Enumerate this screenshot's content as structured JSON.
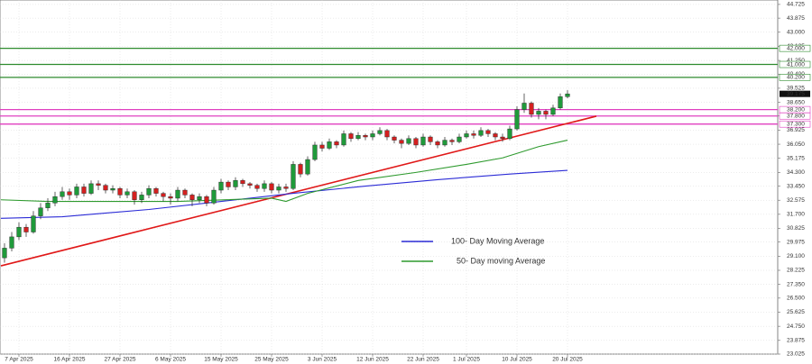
{
  "chart_data": {
    "type": "candlestick",
    "open": [
      29.0,
      29.6,
      30.3,
      30.9,
      30.6,
      31.6,
      32.1,
      32.4,
      32.8,
      33.1,
      32.9,
      33.4,
      33.0,
      33.6,
      33.5,
      33.2,
      33.3,
      32.9,
      33.1,
      32.6,
      32.9,
      33.3,
      33.0,
      32.8,
      32.7,
      33.2,
      32.9,
      32.6,
      32.8,
      32.4,
      33.2,
      33.7,
      33.4,
      33.8,
      33.6,
      33.5,
      33.3,
      33.6,
      33.2,
      33.4,
      33.3,
      34.8,
      34.2,
      35.1,
      36.0,
      35.8,
      36.2,
      36.0,
      36.7,
      36.4,
      36.6,
      36.5,
      36.7,
      36.9,
      36.5,
      36.3,
      36.1,
      36.4,
      36.0,
      36.5,
      36.2,
      36.0,
      36.3,
      36.2,
      36.5,
      36.7,
      36.6,
      36.9,
      36.7,
      36.5,
      36.4,
      37.0,
      38.2,
      38.6,
      37.9,
      38.1,
      37.9,
      38.3,
      39.0
    ],
    "high": [
      29.9,
      30.6,
      31.2,
      31.1,
      31.9,
      32.4,
      32.7,
      33.1,
      33.4,
      33.3,
      33.6,
      33.6,
      33.8,
      33.8,
      33.6,
      33.5,
      33.4,
      33.3,
      33.2,
      33.1,
      33.5,
      33.4,
      33.1,
      33.0,
      33.4,
      33.3,
      33.0,
      33.0,
      32.9,
      33.4,
      33.9,
      33.8,
      34.0,
      33.9,
      33.7,
      33.6,
      33.8,
      33.7,
      33.6,
      33.6,
      35.0,
      34.9,
      35.3,
      36.2,
      36.2,
      36.4,
      36.3,
      36.9,
      36.8,
      36.8,
      36.7,
      36.9,
      37.1,
      37.0,
      36.6,
      36.4,
      36.6,
      36.5,
      36.7,
      36.6,
      36.3,
      36.5,
      36.4,
      36.7,
      36.9,
      36.9,
      37.1,
      37.0,
      36.8,
      36.7,
      37.2,
      38.4,
      39.2,
      38.7,
      38.3,
      38.2,
      38.5,
      39.2,
      39.4
    ],
    "low": [
      28.7,
      29.4,
      30.1,
      30.3,
      30.5,
      31.4,
      31.9,
      32.2,
      32.6,
      32.6,
      32.7,
      32.8,
      32.9,
      33.2,
      33.0,
      33.0,
      32.7,
      32.7,
      32.3,
      32.4,
      32.7,
      32.8,
      32.5,
      32.3,
      32.5,
      32.7,
      32.2,
      32.4,
      32.2,
      32.3,
      33.0,
      33.2,
      33.2,
      33.4,
      33.3,
      33.1,
      33.1,
      33.0,
      33.0,
      33.1,
      33.2,
      34.0,
      34.1,
      35.0,
      35.6,
      35.7,
      35.8,
      35.9,
      36.2,
      36.3,
      36.3,
      36.3,
      36.6,
      36.3,
      36.1,
      35.8,
      36.0,
      35.8,
      35.9,
      36.0,
      35.8,
      35.9,
      36.0,
      36.1,
      36.4,
      36.4,
      36.5,
      36.5,
      36.3,
      36.2,
      36.3,
      36.9,
      38.0,
      37.7,
      37.6,
      37.6,
      37.8,
      38.2,
      38.9
    ],
    "close": [
      29.6,
      30.3,
      30.9,
      30.6,
      31.6,
      32.1,
      32.4,
      32.8,
      33.1,
      32.9,
      33.4,
      33.0,
      33.6,
      33.5,
      33.2,
      33.3,
      32.9,
      33.1,
      32.6,
      32.9,
      33.3,
      33.0,
      32.8,
      32.7,
      33.2,
      32.9,
      32.6,
      32.8,
      32.4,
      33.2,
      33.7,
      33.4,
      33.8,
      33.6,
      33.5,
      33.3,
      33.6,
      33.2,
      33.4,
      33.3,
      34.8,
      34.2,
      35.1,
      36.0,
      35.8,
      36.2,
      36.0,
      36.7,
      36.4,
      36.6,
      36.5,
      36.7,
      36.9,
      36.5,
      36.3,
      36.1,
      36.4,
      36.0,
      36.5,
      36.2,
      36.0,
      36.3,
      36.2,
      36.5,
      36.7,
      36.6,
      36.9,
      36.7,
      36.5,
      36.4,
      37.0,
      38.2,
      38.6,
      37.9,
      38.1,
      37.9,
      38.3,
      39.0,
      39.175
    ],
    "up_color": "#1f9a3a",
    "down_color": "#d42020",
    "series": [
      {
        "name": "100- Day Moving Average",
        "color": "#2b2bd6",
        "x": [
          -0.5,
          8,
          20,
          30,
          40,
          50,
          60,
          70,
          78
        ],
        "values": [
          31.45,
          31.55,
          32.0,
          32.5,
          33.0,
          33.45,
          33.85,
          34.2,
          34.43
        ]
      },
      {
        "name": "50- Day moving Average",
        "color": "#2e9a2e",
        "x": [
          -0.5,
          6,
          24,
          37,
          39,
          42,
          49,
          57,
          64,
          69,
          74,
          78
        ],
        "values": [
          32.6,
          32.5,
          32.5,
          32.7,
          32.5,
          33.0,
          33.8,
          34.3,
          34.8,
          35.2,
          35.9,
          36.3
        ]
      }
    ],
    "trendline": {
      "color": "#e01818",
      "x": [
        -0.5,
        82
      ],
      "values": [
        28.5,
        37.79
      ]
    },
    "levels": [
      {
        "value": 42.0,
        "label": "42.000",
        "color": "#2e8b2e"
      },
      {
        "value": 41.0,
        "label": "41.000",
        "color": "#2e8b2e"
      },
      {
        "value": 40.2,
        "label": "40.200",
        "color": "#2e8b2e"
      },
      {
        "value": 38.2,
        "label": "38.200",
        "color": "#e040c0"
      },
      {
        "value": 37.8,
        "label": "37.800",
        "color": "#e040c0"
      },
      {
        "value": 37.3,
        "label": "37.300",
        "color": "#e040c0"
      }
    ],
    "last_price": {
      "value": 39.175,
      "label": "39.175"
    },
    "xlim": [
      -0.625,
      107.125
    ],
    "ylim": [
      23.025,
      45.0
    ],
    "grid": true,
    "xticks": [
      {
        "value": 2,
        "label": "7 Apr 2025"
      },
      {
        "value": 9,
        "label": "16 Apr 2025"
      },
      {
        "value": 16,
        "label": "27 Apr 2025"
      },
      {
        "value": 23,
        "label": "6 May 2025"
      },
      {
        "value": 30,
        "label": "15 May 2025"
      },
      {
        "value": 37,
        "label": "25 May 2025"
      },
      {
        "value": 44,
        "label": "3 Jun 2025"
      },
      {
        "value": 51,
        "label": "12 Jun 2025"
      },
      {
        "value": 58,
        "label": "22 Jun 2025"
      },
      {
        "value": 64,
        "label": "1 Jul 2025"
      },
      {
        "value": 71,
        "label": "10 Jul 2025"
      },
      {
        "value": 78,
        "label": "20 Jul 2025"
      }
    ],
    "yticks": [
      {
        "value": 44.725,
        "label": "44.725"
      },
      {
        "value": 43.875,
        "label": "43.875"
      },
      {
        "value": 43.0,
        "label": "43.000"
      },
      {
        "value": 42.125,
        "label": "42.125"
      },
      {
        "value": 41.25,
        "label": "41.250"
      },
      {
        "value": 40.4,
        "label": "40.400"
      },
      {
        "value": 39.525,
        "label": "39.525"
      },
      {
        "value": 38.65,
        "label": "38.650"
      },
      {
        "value": 37.8,
        "label": "37.800"
      },
      {
        "value": 36.925,
        "label": "36.925"
      },
      {
        "value": 36.05,
        "label": "36.050"
      },
      {
        "value": 35.175,
        "label": "35.175"
      },
      {
        "value": 34.3,
        "label": "34.300"
      },
      {
        "value": 33.45,
        "label": "33.450"
      },
      {
        "value": 32.575,
        "label": "32.575"
      },
      {
        "value": 31.7,
        "label": "31.700"
      },
      {
        "value": 30.825,
        "label": "30.825"
      },
      {
        "value": 29.975,
        "label": "29.975"
      },
      {
        "value": 29.1,
        "label": "29.100"
      },
      {
        "value": 28.225,
        "label": "28.225"
      },
      {
        "value": 27.35,
        "label": "27.350"
      },
      {
        "value": 26.5,
        "label": "26.500"
      },
      {
        "value": 25.625,
        "label": "25.625"
      },
      {
        "value": 24.75,
        "label": "24.750"
      },
      {
        "value": 23.875,
        "label": "23.875"
      },
      {
        "value": 23.025,
        "label": "23.025"
      }
    ]
  }
}
